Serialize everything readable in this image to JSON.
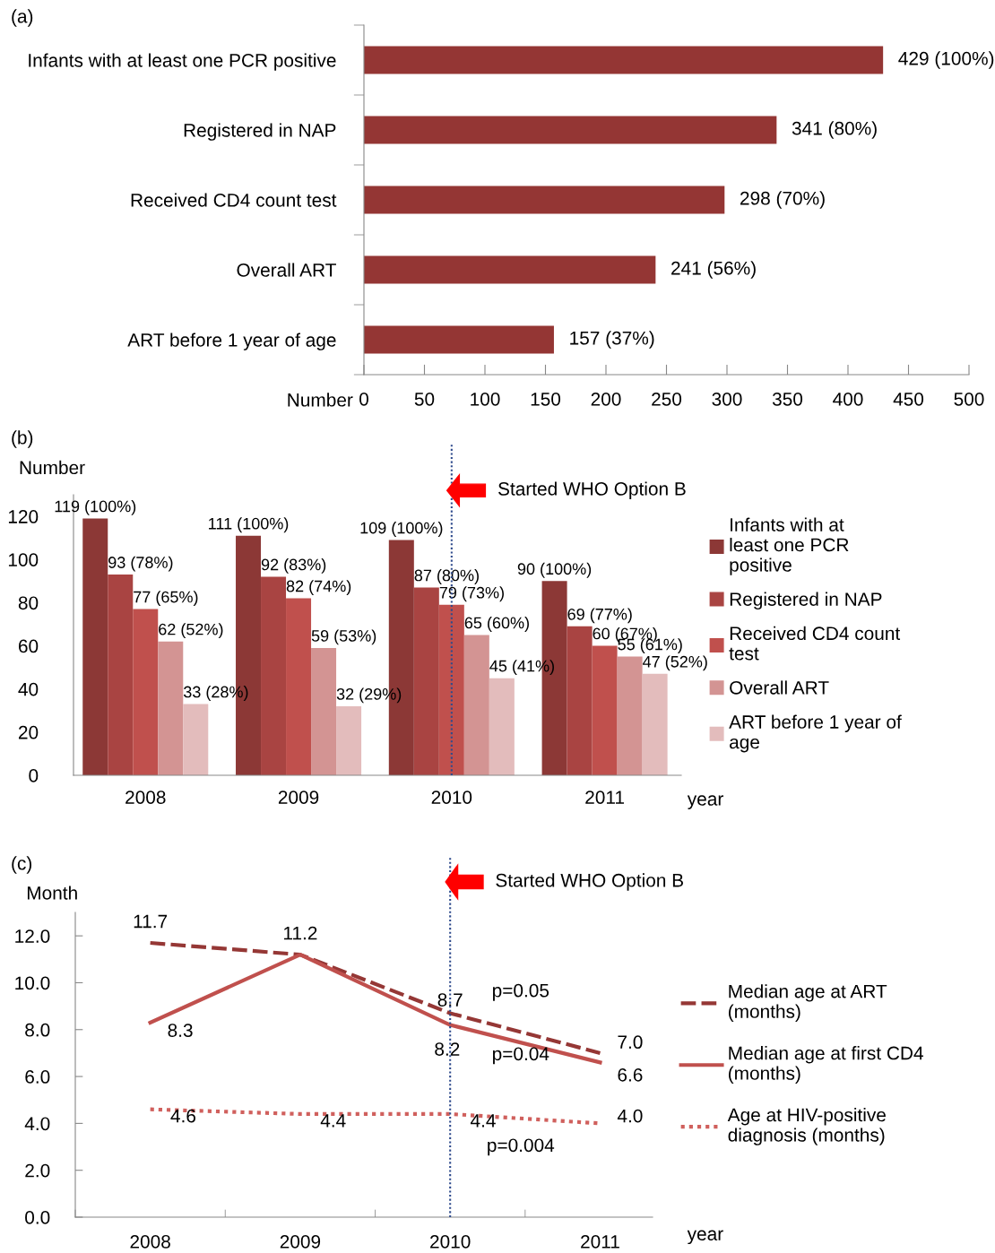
{
  "chart_data": [
    {
      "type": "bar",
      "title": "(a)",
      "orientation": "horizontal",
      "xlabel": "Number",
      "categories": [
        "Infants with at least one PCR positive",
        "Registered in NAP",
        "Received CD4 count test",
        "Overall ART",
        "ART before 1 year of age"
      ],
      "values": [
        429,
        341,
        298,
        241,
        157
      ],
      "value_labels": [
        "429 (100%)",
        "341 (80%)",
        "298 (70%)",
        "241 (56%)",
        "157 (37%)"
      ],
      "color": "#943634",
      "xlim": [
        0,
        500
      ],
      "xticks": [
        0,
        50,
        100,
        150,
        200,
        250,
        300,
        350,
        400,
        450,
        500
      ],
      "grid": false
    },
    {
      "type": "bar",
      "title": "(b)",
      "ylabel": "Number",
      "xlabel": "year",
      "categories": [
        "2008",
        "2009",
        "2010",
        "2011"
      ],
      "series": [
        {
          "name": "Infants with at least one PCR positive",
          "color": "#8c3836",
          "values": [
            119,
            111,
            109,
            90
          ],
          "value_labels": [
            "119 (100%)",
            "111 (100%)",
            "109 (100%)",
            "90 (100%)"
          ]
        },
        {
          "name": "Registered in NAP",
          "color": "#a94442",
          "values": [
            93,
            92,
            87,
            69
          ],
          "value_labels": [
            "93 (78%)",
            "92 (83%)",
            "87 (80%)",
            "69 (77%)"
          ]
        },
        {
          "name": "Received CD4 count test",
          "color": "#c0504d",
          "values": [
            77,
            82,
            79,
            60
          ],
          "value_labels": [
            "77 (65%)",
            "82 (74%)",
            "79 (73%)",
            "60 (67%)"
          ]
        },
        {
          "name": "Overall ART",
          "color": "#d39493",
          "values": [
            62,
            59,
            65,
            55
          ],
          "value_labels": [
            "62 (52%)",
            "59 (53%)",
            "65 (60%)",
            "55 (61%)"
          ]
        },
        {
          "name": "ART before 1 year of age",
          "color": "#e3bcbc",
          "values": [
            33,
            32,
            45,
            47
          ],
          "value_labels": [
            "33 (28%)",
            "32 (29%)",
            "45 (41%)",
            "47 (52%)"
          ]
        }
      ],
      "ylim": [
        0,
        130
      ],
      "yticks": [
        0,
        20,
        40,
        60,
        80,
        100,
        120
      ],
      "grid": false,
      "legend": "right",
      "ref_lines": [
        {
          "axis": "x",
          "value": "2010",
          "label": "Started WHO Option B",
          "color": "#2e4a8c",
          "line_style": "dotted"
        }
      ]
    },
    {
      "type": "line",
      "title": "(c)",
      "ylabel": "Month",
      "xlabel": "year",
      "categories": [
        "2008",
        "2009",
        "2010",
        "2011"
      ],
      "series": [
        {
          "name": "Median age at ART (months)",
          "color": "#953735",
          "line_style": "dashed",
          "values": [
            11.7,
            11.2,
            8.7,
            7.0
          ],
          "value_labels": [
            "11.7",
            "11.2",
            "8.7",
            "7.0"
          ]
        },
        {
          "name": "Median age at first CD4 (months)",
          "color": "#c0504d",
          "line_style": "solid",
          "values": [
            8.3,
            11.2,
            8.2,
            6.6
          ],
          "value_labels": [
            "8.3",
            null,
            "8.2",
            "6.6"
          ]
        },
        {
          "name": "Age at HIV-positive diagnosis (months)",
          "color": "#d0605d",
          "line_style": "dotted",
          "values": [
            4.6,
            4.4,
            4.4,
            4.0
          ],
          "value_labels": [
            "4.6",
            "4.4",
            "4.4",
            "4.0"
          ]
        }
      ],
      "ylim": [
        0,
        13
      ],
      "yticks": [
        {
          "value": 0,
          "label": "0.0"
        },
        {
          "value": 2,
          "label": "2.0"
        },
        {
          "value": 4,
          "label": "4.0"
        },
        {
          "value": 6,
          "label": "6.0"
        },
        {
          "value": 8,
          "label": "8.0"
        },
        {
          "value": 10,
          "label": "10.0"
        },
        {
          "value": 12,
          "label": "12.0"
        }
      ],
      "grid": false,
      "legend": "right",
      "marker": "none",
      "ref_lines": [
        {
          "axis": "x",
          "value": "2010",
          "label": "Started WHO Option B",
          "color": "#2e4a8c",
          "line_style": "dotted"
        }
      ],
      "annotations": [
        {
          "text": "p=0.05",
          "x": "2010",
          "y": 8.7
        },
        {
          "text": "p=0.04",
          "x": "2010",
          "y": 8.2
        },
        {
          "text": "p=0.004",
          "x": "2010",
          "y": 4.4
        }
      ]
    }
  ]
}
